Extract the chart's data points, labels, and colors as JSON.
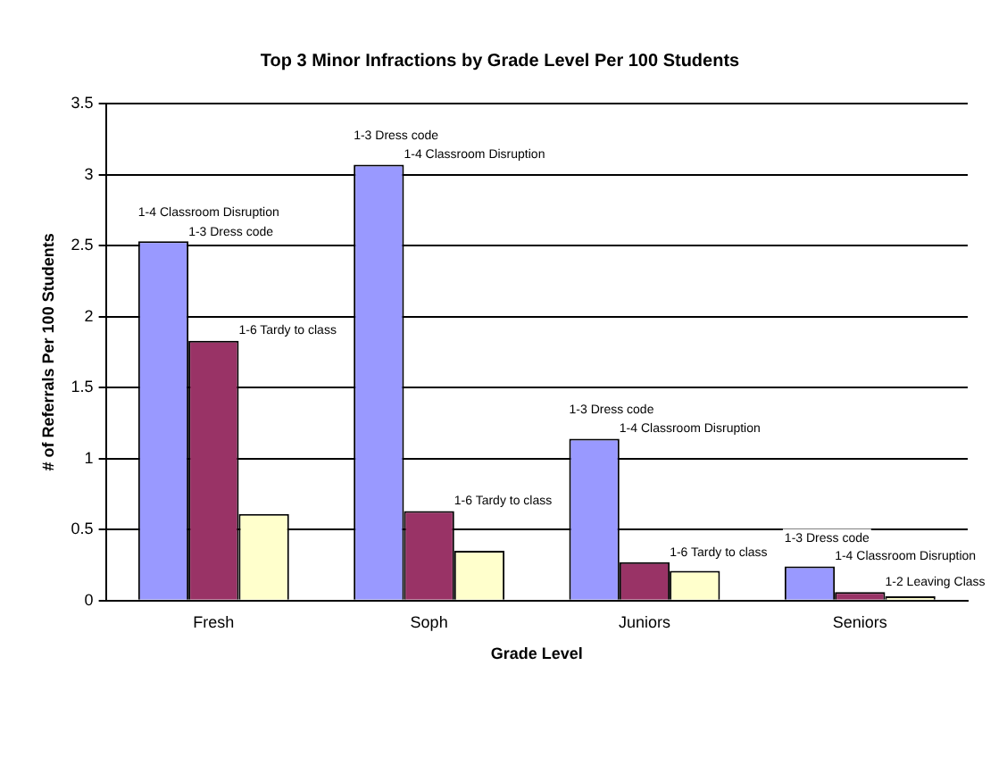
{
  "chart_data": {
    "type": "bar",
    "title": "Top 3 Minor Infractions by Grade Level Per 100 Students",
    "xlabel": "Grade Level",
    "ylabel": "# of Referrals Per 100 Students",
    "categories": [
      "Fresh",
      "Soph",
      "Juniors",
      "Seniors"
    ],
    "series": [
      {
        "color": "#9999ff",
        "values": [
          2.53,
          3.07,
          1.14,
          0.24
        ]
      },
      {
        "color": "#993366",
        "values": [
          1.83,
          0.63,
          0.27,
          0.06
        ]
      },
      {
        "color": "#ffffcc",
        "values": [
          0.61,
          0.35,
          0.21,
          0.03
        ]
      }
    ],
    "ylim": [
      0,
      3.5
    ],
    "yticks": [
      0,
      0.5,
      1,
      1.5,
      2,
      2.5,
      3,
      3.5
    ],
    "grid": "y",
    "legend": false,
    "annotations": [
      "1-4 Classroom Disruption",
      "1-3 Dress code",
      "1-6 Tardy to class",
      "1-3 Dress code",
      "1-4 Classroom Disruption",
      "1-6 Tardy to class",
      "1-3 Dress code",
      "1-4 Classroom Disruption",
      "1-6 Tardy to class",
      "1-3 Dress code",
      "1-4 Classroom Disruption",
      "1-2 Leaving Class"
    ]
  }
}
